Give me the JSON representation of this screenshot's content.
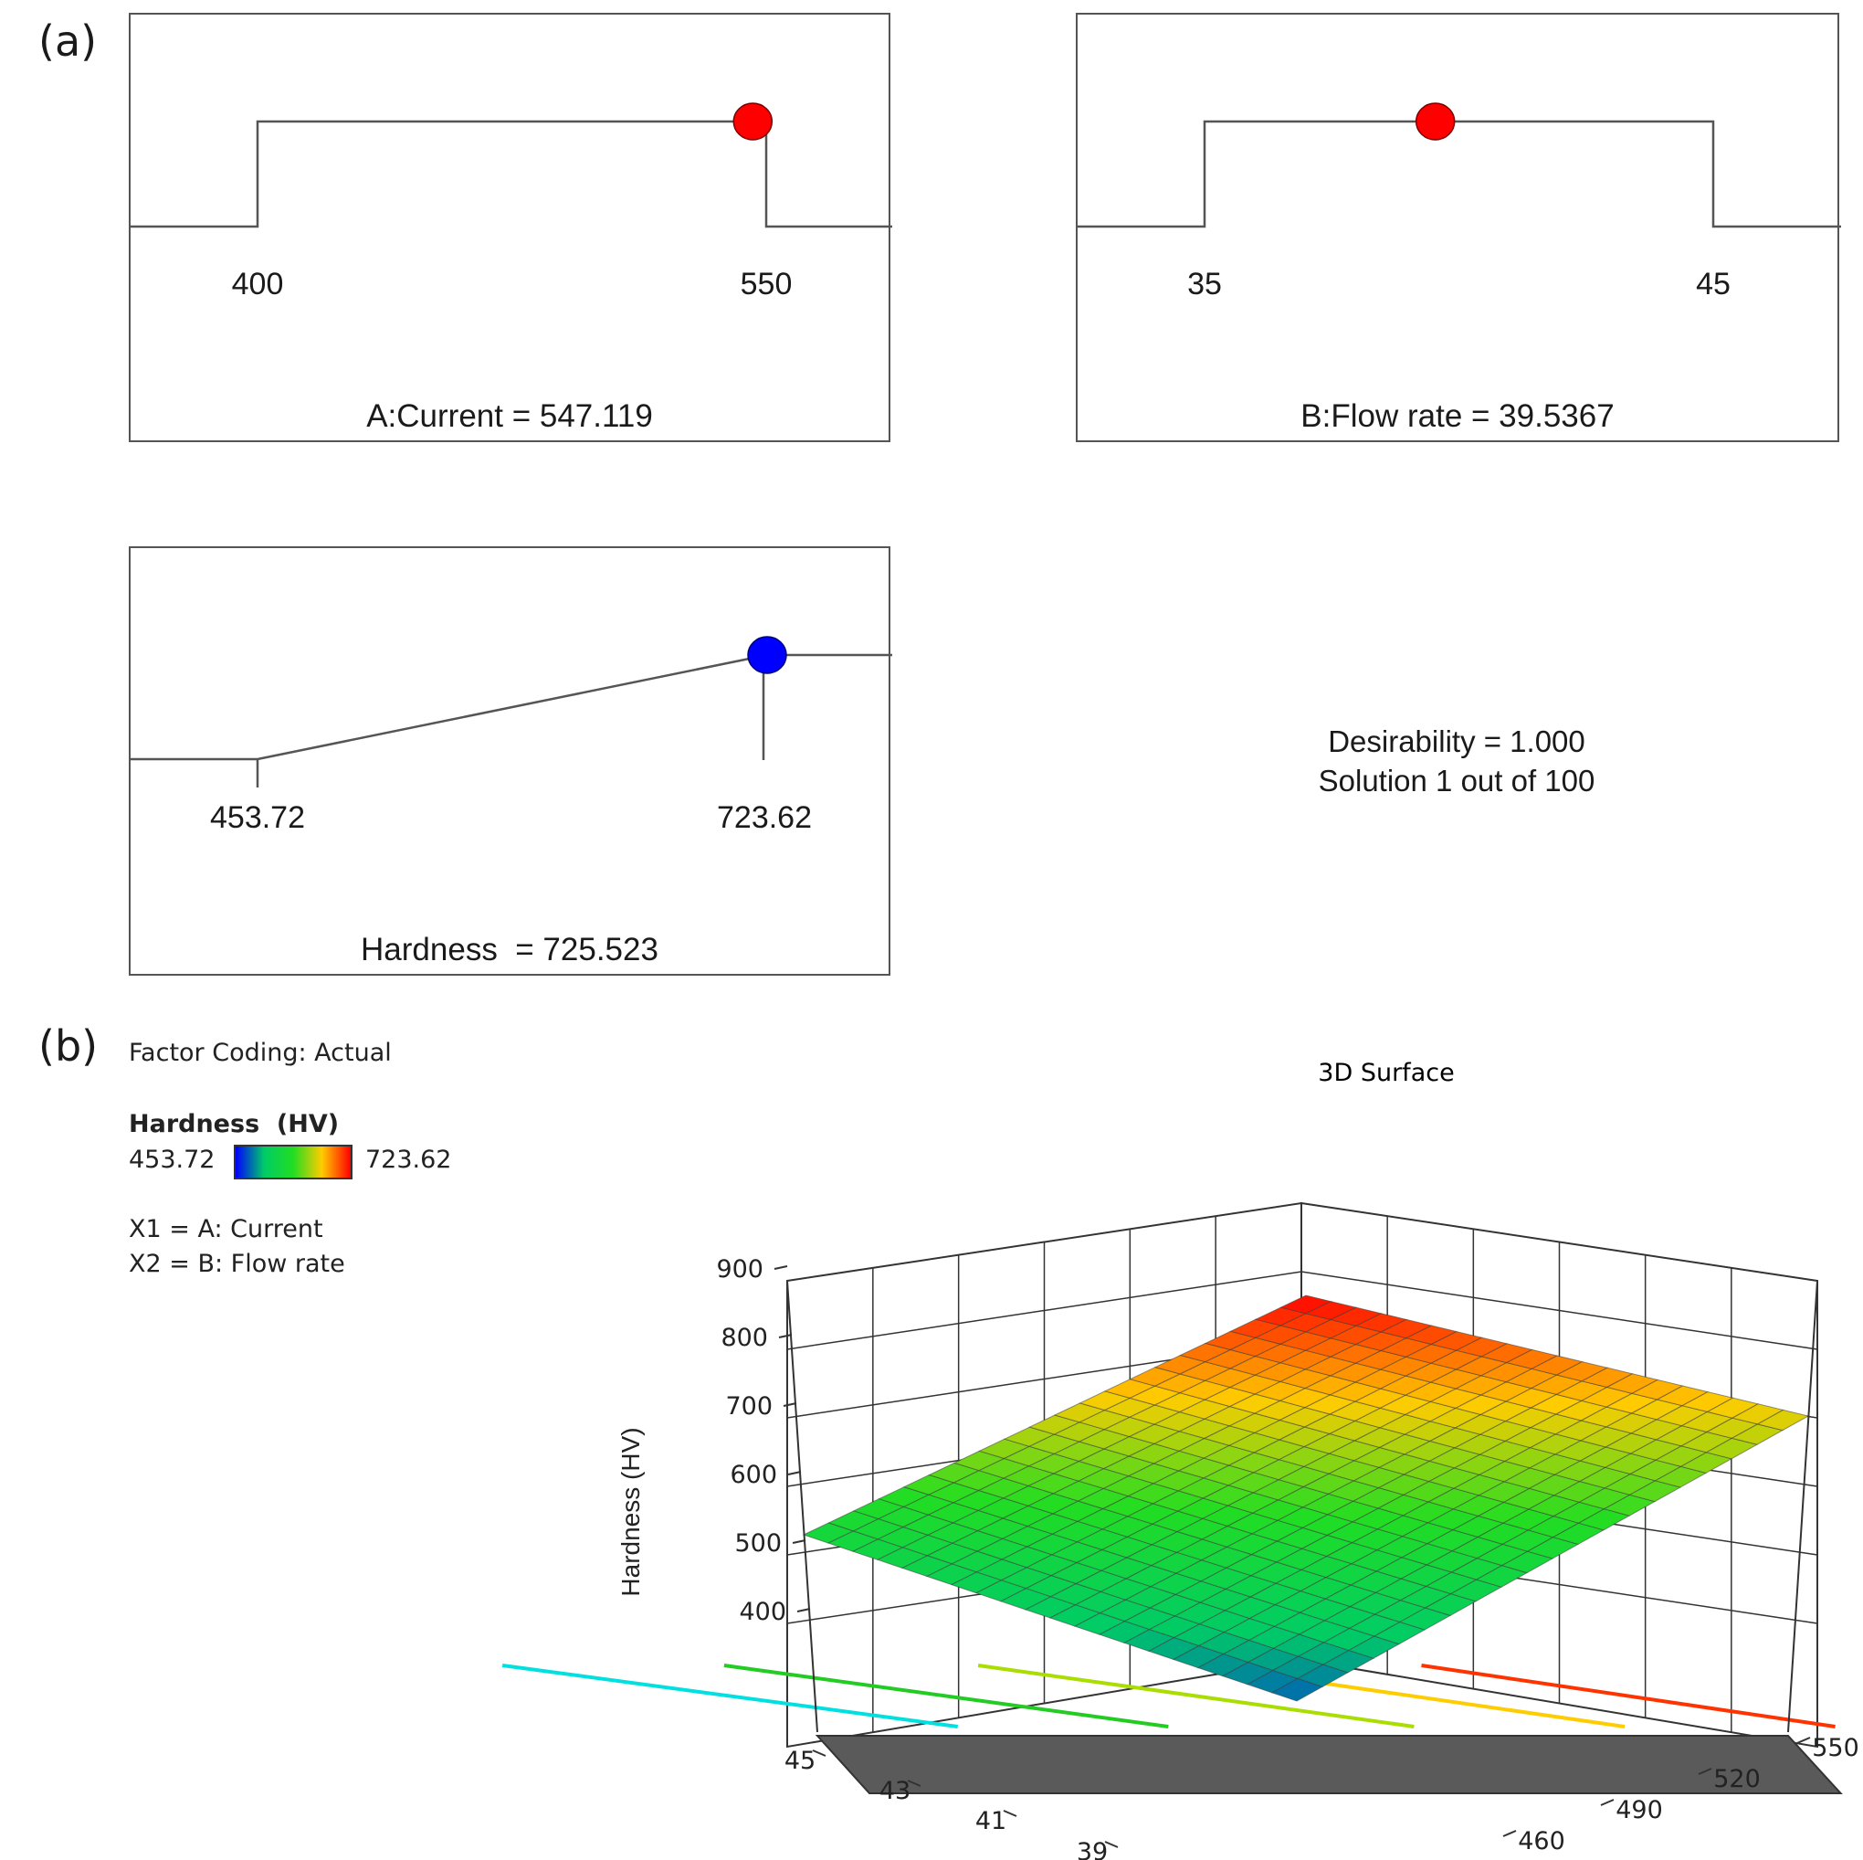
{
  "panel_a": {
    "letter": "(a)",
    "current": {
      "low_label": "400",
      "high_label": "550",
      "low": 400,
      "high": 550,
      "value": 547.119,
      "caption": "A:Current = 547.119",
      "marker_color": "#ff0000"
    },
    "flow_rate": {
      "low_label": "35",
      "high_label": "45",
      "low": 35,
      "high": 45,
      "value": 39.5367,
      "caption": "B:Flow rate = 39.5367",
      "marker_color": "#ff0000"
    },
    "hardness": {
      "low_label": "453.72",
      "high_label": "723.62",
      "low": 453.72,
      "high": 723.62,
      "value": 725.523,
      "caption": "Hardness  = 725.523",
      "marker_color": "#0000ff"
    },
    "desirability": "Desirability = 1.000",
    "solution": "Solution 1 out of 100"
  },
  "panel_b": {
    "letter": "(b)",
    "factor_coding": "Factor Coding: Actual",
    "legend_title": "Hardness  (HV)",
    "legend_min": "453.72",
    "legend_max": "723.62",
    "x1": "X1 = A: Current",
    "x2": "X2 = B: Flow rate"
  },
  "chart_data": {
    "type": "surface",
    "title": "3D Surface",
    "zlabel": "Hardness  (HV)",
    "z_ticks": [
      "900",
      "800",
      "700",
      "600",
      "500",
      "400"
    ],
    "z_range": [
      400,
      900
    ],
    "current_ticks": [
      "460",
      "490",
      "520",
      "550"
    ],
    "flow_ticks": [
      "39",
      "41",
      "43",
      "45"
    ],
    "current_range": [
      400,
      550
    ],
    "flow_range": [
      35,
      45
    ],
    "corners": [
      {
        "current": 400,
        "flow": 45,
        "hardness": 510
      },
      {
        "current": 550,
        "flow": 45,
        "hardness": 680
      },
      {
        "current": 550,
        "flow": 35,
        "hardness": 840
      },
      {
        "current": 400,
        "flow": 35,
        "hardness": 615
      }
    ],
    "colorscale": [
      "#0000ff",
      "#00cc66",
      "#22dd22",
      "#ffcc00",
      "#ff0000"
    ],
    "floor_color": "#5a5a5a"
  }
}
